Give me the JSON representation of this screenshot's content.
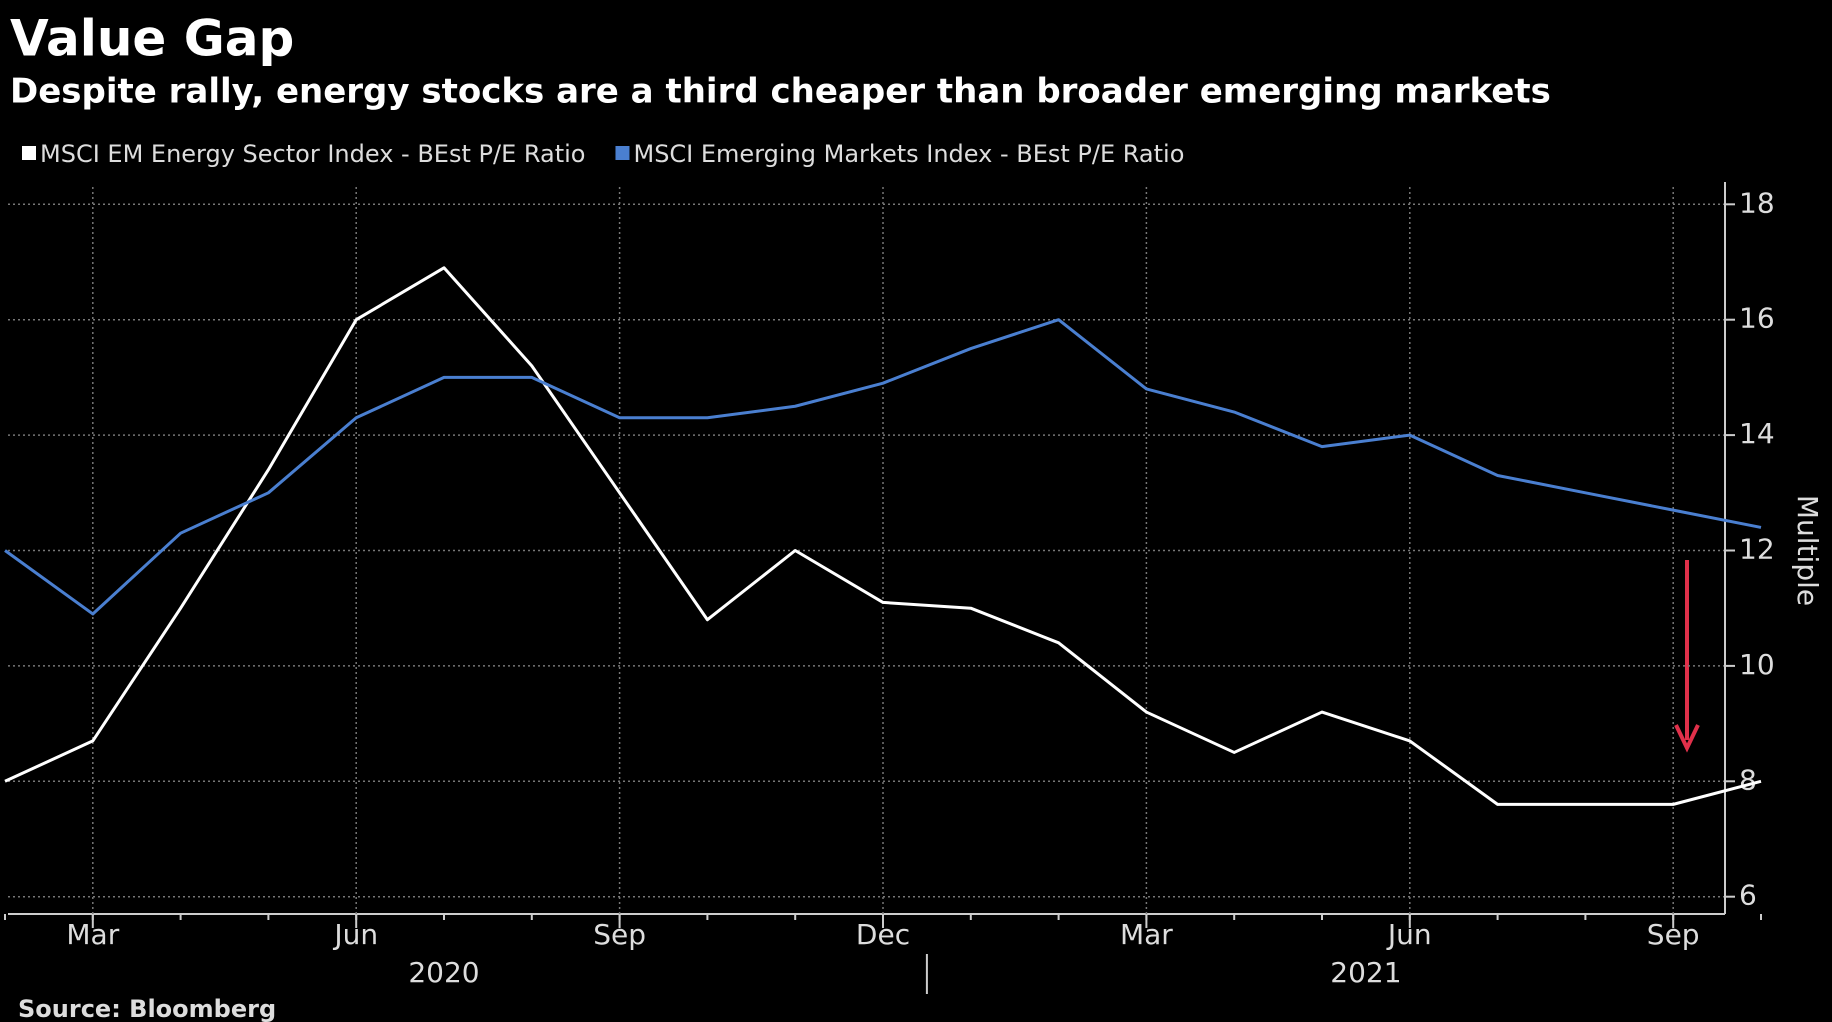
{
  "chart_data": {
    "type": "line",
    "title": "Value Gap",
    "subtitle": "Despite rally, energy stocks are a third cheaper than broader emerging markets",
    "source": "Source: Bloomberg",
    "y_axis_label": "Multiple",
    "x": [
      "2020-02",
      "2020-03",
      "2020-04",
      "2020-05",
      "2020-06",
      "2020-07",
      "2020-08",
      "2020-09",
      "2020-10",
      "2020-11",
      "2020-12",
      "2021-01",
      "2021-02",
      "2021-03",
      "2021-04",
      "2021-05",
      "2021-06",
      "2021-07",
      "2021-08",
      "2021-09",
      "2021-10"
    ],
    "series": [
      {
        "name": "MSCI EM Energy Sector Index - BEst P/E Ratio",
        "color": "#ffffff",
        "values": [
          8.0,
          8.7,
          11.0,
          13.4,
          16.0,
          16.9,
          15.2,
          13.0,
          10.8,
          12.0,
          11.1,
          11.0,
          10.4,
          9.2,
          8.5,
          9.2,
          8.7,
          7.6,
          7.6,
          7.6,
          8.0
        ]
      },
      {
        "name": "MSCI Emerging Markets Index - BEst P/E Ratio",
        "color": "#4a7fd0",
        "values": [
          12.0,
          10.9,
          12.3,
          13.0,
          14.3,
          15.0,
          15.0,
          14.3,
          14.3,
          14.5,
          14.9,
          15.5,
          16.0,
          14.8,
          14.4,
          13.8,
          14.0,
          13.3,
          13.0,
          12.7,
          12.4
        ]
      }
    ],
    "years": [
      "2020",
      "2021"
    ],
    "xticks": [
      {
        "value": "2020-03",
        "label": "Mar"
      },
      {
        "value": "2020-06",
        "label": "Jun"
      },
      {
        "value": "2020-09",
        "label": "Sep"
      },
      {
        "value": "2020-12",
        "label": "Dec"
      },
      {
        "value": "2021-03",
        "label": "Mar"
      },
      {
        "value": "2021-06",
        "label": "Jun"
      },
      {
        "value": "2021-09",
        "label": "Sep"
      }
    ],
    "ylim": [
      5.7,
      18.3
    ],
    "yticks": [
      6,
      8,
      10,
      12,
      14,
      16,
      18
    ],
    "grid": true
  }
}
